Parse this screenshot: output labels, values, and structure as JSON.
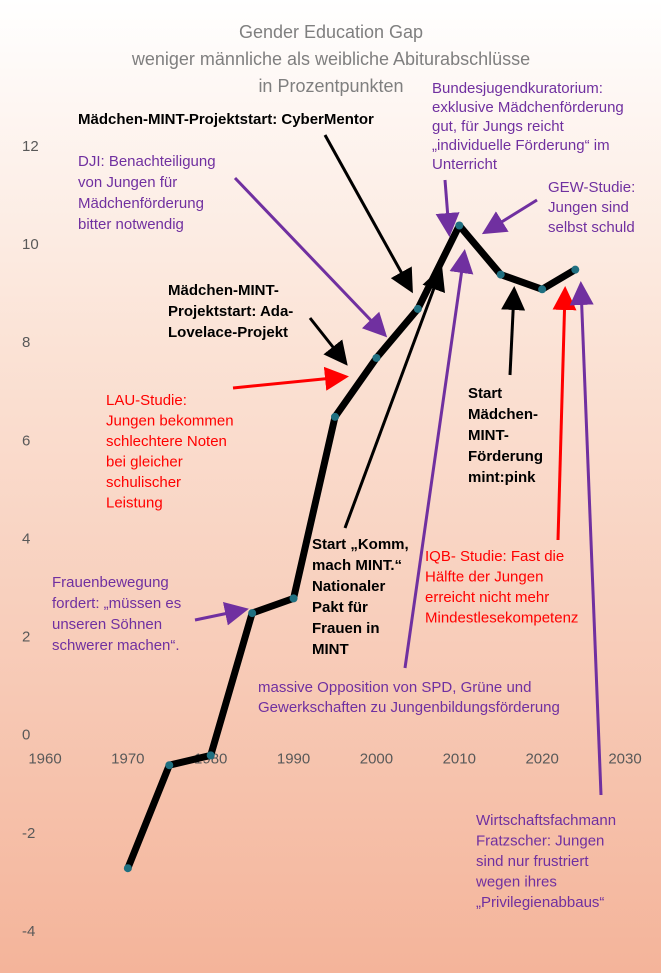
{
  "chart_data": {
    "type": "line",
    "title": [
      "Gender Education  Gap",
      "weniger männliche als weibliche Abiturabschlüsse",
      "in Prozentpunkten"
    ],
    "x": [
      1970,
      1975,
      1980,
      1985,
      1990,
      1995,
      2000,
      2005,
      2010,
      2015,
      2020,
      2024
    ],
    "series": [
      {
        "color": "#000000",
        "marker_color": "#1f6f80",
        "values": [
          -2.7,
          -0.6,
          -0.4,
          2.5,
          2.8,
          6.5,
          7.7,
          8.7,
          10.4,
          9.4,
          9.1,
          9.5
        ]
      }
    ],
    "xlim": [
      1960,
      2030
    ],
    "xticks": [
      1960,
      1970,
      1980,
      1990,
      2000,
      2010,
      2020,
      2030
    ],
    "ylim": [
      -4,
      12
    ],
    "yticks": [
      -4,
      -2,
      0,
      2,
      4,
      6,
      8,
      10,
      12
    ],
    "grid": false,
    "annotations": [
      {
        "color": "#000000",
        "bold": true,
        "lines": [
          "Mädchen-MINT-Projektstart: CyberMentor"
        ]
      },
      {
        "color": "#7030a0",
        "bold": false,
        "lines": [
          "DJI: Benachteiligung",
          "von Jungen für",
          "Mädchenförderung",
          "bitter notwendig"
        ]
      },
      {
        "color": "#000000",
        "bold": true,
        "lines": [
          "Mädchen-MINT-",
          "Projektstart: Ada-",
          "Lovelace-Projekt"
        ]
      },
      {
        "color": "#ff0000",
        "bold": false,
        "lines": [
          "LAU-Studie:",
          "Jungen bekommen",
          "schlechtere Noten",
          "bei gleicher",
          "schulischer",
          "Leistung"
        ]
      },
      {
        "color": "#7030a0",
        "bold": false,
        "lines": [
          "Frauenbewegung",
          "fordert: „müssen es",
          "unseren Söhnen",
          "schwerer machen“."
        ]
      },
      {
        "color": "#000000",
        "bold": true,
        "lines": [
          "Start „Komm,",
          "mach MINT.“",
          "Nationaler",
          "Pakt für",
          "Frauen in",
          "MINT"
        ]
      },
      {
        "color": "#7030a0",
        "bold": false,
        "lines": [
          "massive Opposition von SPD, Grüne und",
          "Gewerkschaften zu Jungenbildungsförderung"
        ]
      },
      {
        "color": "#7030a0",
        "bold": false,
        "lines": [
          "Bundesjugendkuratorium:",
          "exklusive Mädchenförderung",
          "gut, für Jungs reicht",
          "„individuelle Förderung“ im",
          "Unterricht"
        ]
      },
      {
        "color": "#7030a0",
        "bold": false,
        "lines": [
          "GEW-Studie:",
          "Jungen sind",
          "selbst schuld"
        ]
      },
      {
        "color": "#000000",
        "bold": true,
        "lines": [
          "Start",
          "Mädchen-",
          "MINT-",
          "Förderung",
          "mint:pink"
        ]
      },
      {
        "color": "#ff0000",
        "bold": false,
        "lines": [
          "IQB- Studie: Fast die",
          "Hälfte der Jungen",
          "erreicht nicht mehr",
          "Mindestlesekompetenz"
        ]
      },
      {
        "color": "#7030a0",
        "bold": false,
        "lines": [
          "Wirtschaftsfachmann",
          "Fratzscher: Jungen",
          "sind nur frustriert",
          "wegen ihres",
          "„Privilegienabbaus“"
        ]
      }
    ]
  }
}
